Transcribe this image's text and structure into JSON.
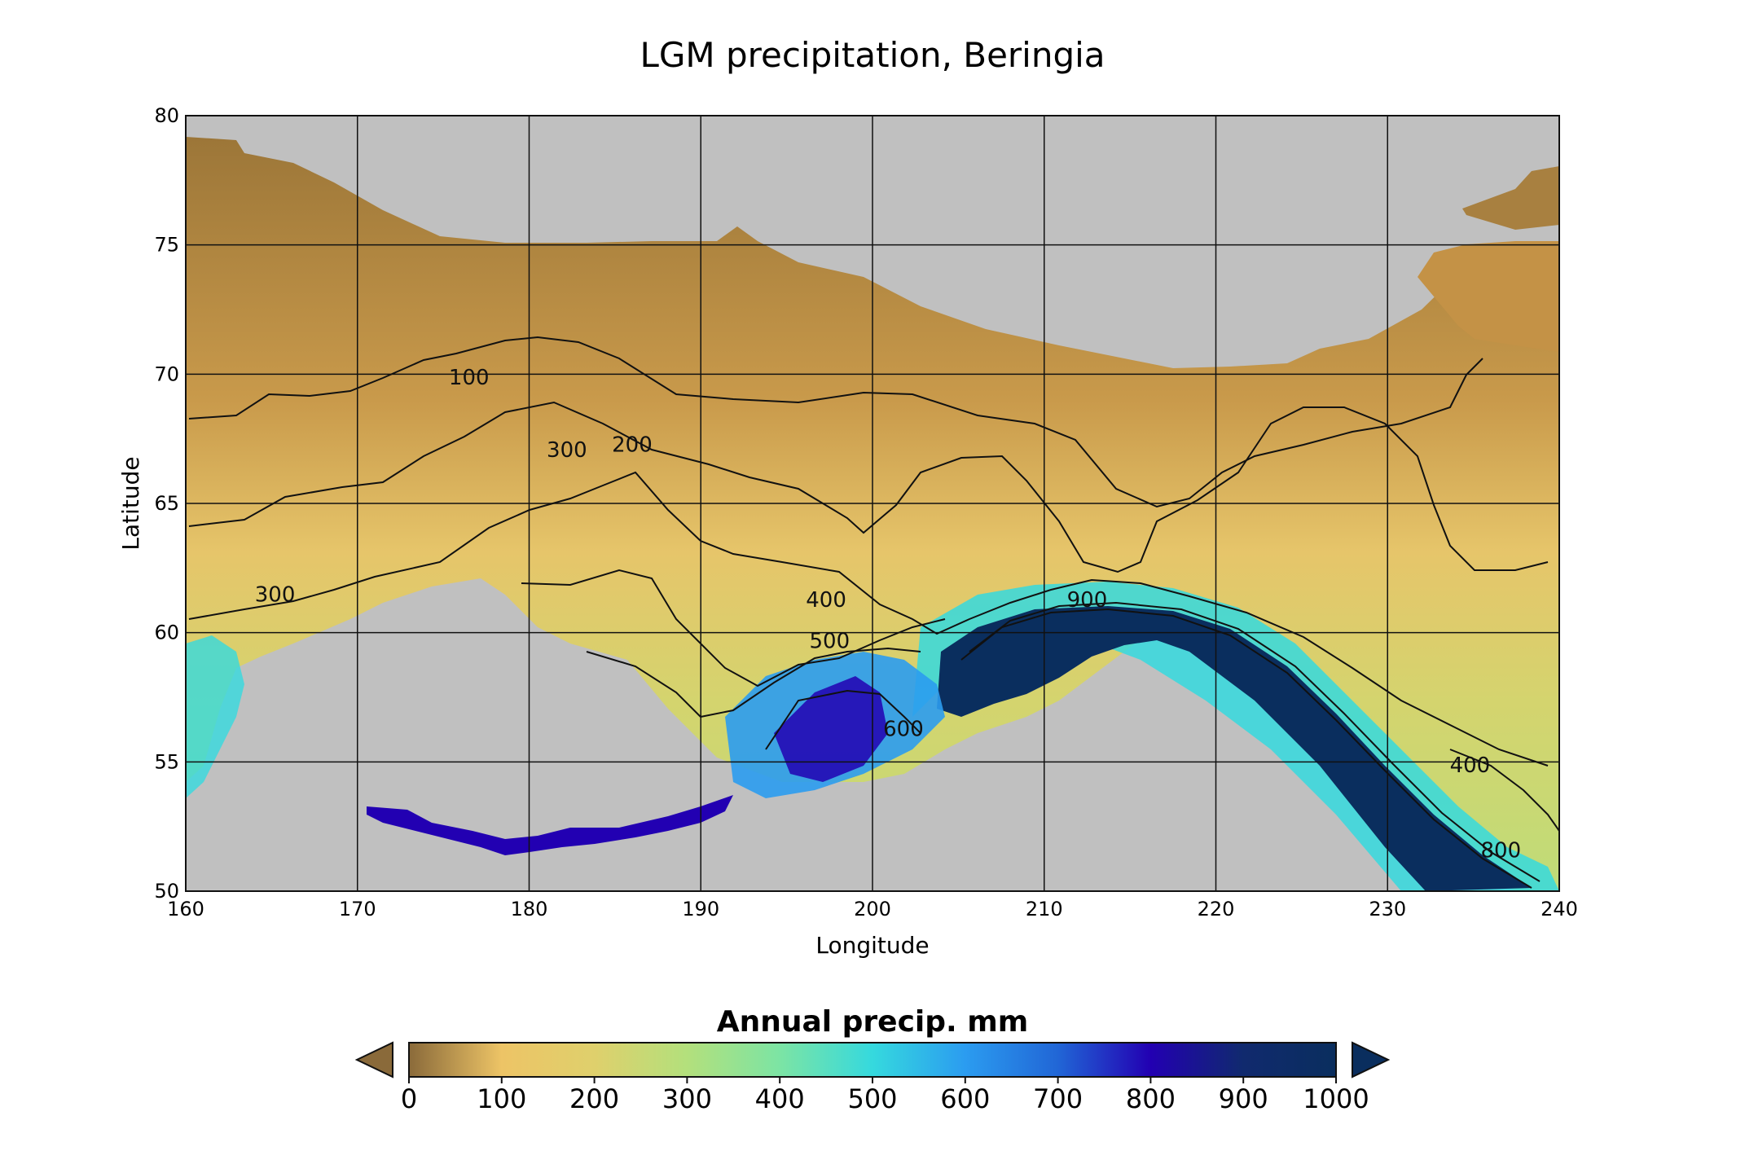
{
  "title": "LGM precipitation, Beringia",
  "xlabel": "Longitude",
  "ylabel": "Latitude",
  "colors": {
    "background": "#ffffff",
    "ocean_mask": "#c0c0c0",
    "grid": "#111111",
    "contour": "#111111",
    "cbar_under": "#8a6a3a",
    "cbar_over": "#0a2e5e"
  },
  "chart_data": {
    "type": "heatmap",
    "title": "LGM precipitation, Beringia",
    "xlabel": "Longitude",
    "ylabel": "Latitude",
    "xlim": [
      160,
      240
    ],
    "ylim": [
      50,
      80
    ],
    "xticks": [
      "160",
      "170",
      "180",
      "190",
      "200",
      "210",
      "220",
      "230",
      "240"
    ],
    "yticks": [
      "50",
      "55",
      "60",
      "65",
      "70",
      "75",
      "80"
    ],
    "grid": true,
    "contour_labels": [
      {
        "text": "100",
        "lon": 176.5,
        "lat": 69.6
      },
      {
        "text": "200",
        "lon": 186.0,
        "lat": 67.0
      },
      {
        "text": "300",
        "lon": 182.2,
        "lat": 66.8
      },
      {
        "text": "300",
        "lon": 165.2,
        "lat": 61.2
      },
      {
        "text": "400",
        "lon": 197.3,
        "lat": 61.0
      },
      {
        "text": "500",
        "lon": 197.5,
        "lat": 59.4
      },
      {
        "text": "600",
        "lon": 201.8,
        "lat": 56.0
      },
      {
        "text": "900",
        "lon": 212.5,
        "lat": 61.0
      },
      {
        "text": "400",
        "lon": 234.8,
        "lat": 54.6
      },
      {
        "text": "800",
        "lon": 236.6,
        "lat": 51.3
      }
    ],
    "colorbar": {
      "label": "Annual precip. mm",
      "ticks": [
        "0",
        "100",
        "200",
        "300",
        "400",
        "500",
        "600",
        "700",
        "800",
        "900",
        "1000"
      ],
      "range": [
        0,
        1000
      ],
      "extend": "both",
      "stops": [
        {
          "v": 0,
          "c": "#8a6a3a"
        },
        {
          "v": 100,
          "c": "#edc466"
        },
        {
          "v": 200,
          "c": "#dfd06c"
        },
        {
          "v": 300,
          "c": "#b3e07c"
        },
        {
          "v": 400,
          "c": "#7ce4a4"
        },
        {
          "v": 500,
          "c": "#35d9de"
        },
        {
          "v": 600,
          "c": "#2b9cf0"
        },
        {
          "v": 700,
          "c": "#2166d6"
        },
        {
          "v": 800,
          "c": "#2200b2"
        },
        {
          "v": 900,
          "c": "#102a6e"
        },
        {
          "v": 1000,
          "c": "#0a2e5e"
        }
      ]
    }
  }
}
